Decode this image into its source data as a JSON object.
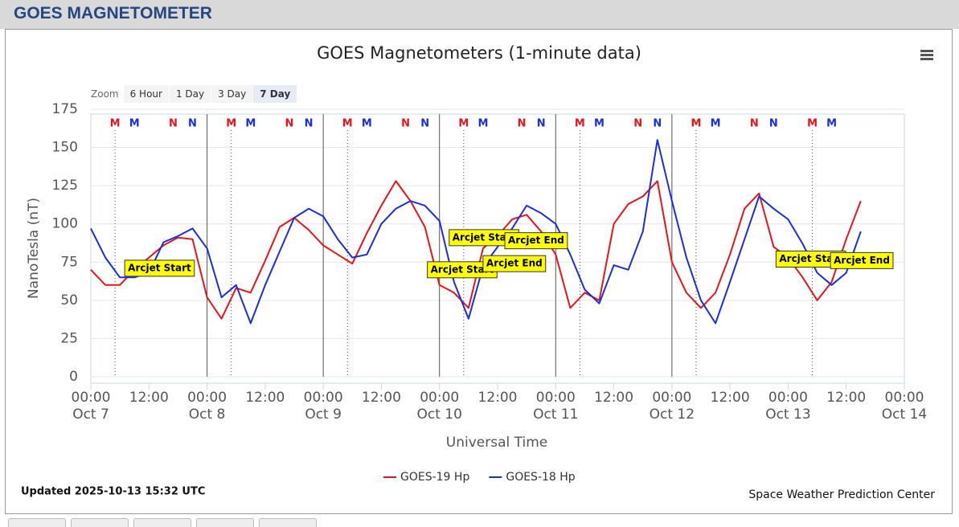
{
  "header": {
    "title": "GOES MAGNETOMETER"
  },
  "ui": {
    "zoom_label": "Zoom",
    "zoom_buttons": [
      "6 Hour",
      "1 Day",
      "3 Day",
      "7 Day"
    ],
    "selected_zoom": 3
  },
  "chart_data": {
    "type": "line",
    "title": "GOES Magnetometers (1-minute data)",
    "x_label": "Universal Time",
    "y_label": "NanoTesla (nT)",
    "updated": "Updated 2025-10-13 15:32 UTC",
    "credits": "Space Weather Prediction Center",
    "xlim": [
      "Oct 7 00:00",
      "Oct 14 00:00"
    ],
    "xticks": [
      {
        "value": "Oct 7 00:00",
        "label": "00:00",
        "date": "Oct 7"
      },
      {
        "value": "Oct 7 12:00",
        "label": "12:00"
      },
      {
        "value": "Oct 8 00:00",
        "label": "00:00",
        "date": "Oct 8"
      },
      {
        "value": "Oct 8 12:00",
        "label": "12:00"
      },
      {
        "value": "Oct 9 00:00",
        "label": "00:00",
        "date": "Oct 9"
      },
      {
        "value": "Oct 9 12:00",
        "label": "12:00"
      },
      {
        "value": "Oct 10 00:00",
        "label": "00:00",
        "date": "Oct 10"
      },
      {
        "value": "Oct 10 12:00",
        "label": "12:00"
      },
      {
        "value": "Oct 11 00:00",
        "label": "00:00",
        "date": "Oct 11"
      },
      {
        "value": "Oct 11 12:00",
        "label": "12:00"
      },
      {
        "value": "Oct 12 00:00",
        "label": "00:00",
        "date": "Oct 12"
      },
      {
        "value": "Oct 12 12:00",
        "label": "12:00"
      },
      {
        "value": "Oct 13 00:00",
        "label": "00:00",
        "date": "Oct 13"
      },
      {
        "value": "Oct 13 12:00",
        "label": "12:00"
      },
      {
        "value": "Oct 14 00:00",
        "label": "00:00",
        "date": "Oct 14"
      }
    ],
    "ylim": [
      0,
      175
    ],
    "yticks": [
      0,
      25,
      50,
      75,
      100,
      125,
      150,
      175
    ],
    "grid": true,
    "midnight_lines": [
      "Oct 8 00:00",
      "Oct 9 00:00",
      "Oct 10 00:00",
      "Oct 11 00:00",
      "Oct 12 00:00"
    ],
    "markers": [
      {
        "text": "M",
        "color": "#e8141b",
        "dotted": true,
        "x": [
          "Oct 7 05:00",
          "Oct 8 05:00",
          "Oct 9 05:00",
          "Oct 10 05:00",
          "Oct 11 05:00",
          "Oct 12 05:00",
          "Oct 13 05:00"
        ]
      },
      {
        "text": "M",
        "color": "#1a2de0",
        "dotted": false,
        "x": [
          "Oct 7 09:00",
          "Oct 8 09:00",
          "Oct 9 09:00",
          "Oct 10 09:00",
          "Oct 11 09:00",
          "Oct 12 09:00",
          "Oct 13 09:00"
        ]
      },
      {
        "text": "N",
        "color": "#e8141b",
        "dotted": false,
        "x": [
          "Oct 7 17:00",
          "Oct 8 17:00",
          "Oct 9 17:00",
          "Oct 10 17:00",
          "Oct 11 17:00",
          "Oct 12 17:00"
        ]
      },
      {
        "text": "N",
        "color": "#1a2de0",
        "dotted": false,
        "x": [
          "Oct 7 21:00",
          "Oct 8 21:00",
          "Oct 9 21:00",
          "Oct 10 21:00",
          "Oct 11 21:00",
          "Oct 12 21:00"
        ]
      }
    ],
    "annotations": [
      {
        "text": "Arcjet Start",
        "x": "Oct 7 07:00",
        "y": 71
      },
      {
        "text": "Arcjet Start",
        "x": "Oct 10 02:00",
        "y": 91
      },
      {
        "text": "Arcjet End",
        "x": "Oct 10 13:30",
        "y": 89
      },
      {
        "text": "Arcjet Start",
        "x": "Oct 9 21:30",
        "y": 70
      },
      {
        "text": "Arcjet End",
        "x": "Oct 10 09:00",
        "y": 74
      },
      {
        "text": "Arcjet Start",
        "x": "Oct 12 21:30",
        "y": 77
      },
      {
        "text": "Arcjet End",
        "x": "Oct 13 08:45",
        "y": 76
      }
    ],
    "x": [
      "Oct 7 00:00",
      "Oct 7 03:00",
      "Oct 7 06:00",
      "Oct 7 09:00",
      "Oct 7 12:00",
      "Oct 7 15:00",
      "Oct 7 18:00",
      "Oct 7 21:00",
      "Oct 8 00:00",
      "Oct 8 03:00",
      "Oct 8 06:00",
      "Oct 8 09:00",
      "Oct 8 12:00",
      "Oct 8 15:00",
      "Oct 8 18:00",
      "Oct 8 21:00",
      "Oct 9 00:00",
      "Oct 9 03:00",
      "Oct 9 06:00",
      "Oct 9 09:00",
      "Oct 9 12:00",
      "Oct 9 15:00",
      "Oct 9 18:00",
      "Oct 9 21:00",
      "Oct 10 00:00",
      "Oct 10 03:00",
      "Oct 10 06:00",
      "Oct 10 09:00",
      "Oct 10 12:00",
      "Oct 10 15:00",
      "Oct 10 18:00",
      "Oct 10 21:00",
      "Oct 11 00:00",
      "Oct 11 03:00",
      "Oct 11 06:00",
      "Oct 11 09:00",
      "Oct 11 12:00",
      "Oct 11 15:00",
      "Oct 11 18:00",
      "Oct 11 21:00",
      "Oct 12 00:00",
      "Oct 12 03:00",
      "Oct 12 06:00",
      "Oct 12 09:00",
      "Oct 12 12:00",
      "Oct 12 15:00",
      "Oct 12 18:00",
      "Oct 12 21:00",
      "Oct 13 00:00",
      "Oct 13 03:00",
      "Oct 13 06:00",
      "Oct 13 09:00",
      "Oct 13 12:00",
      "Oct 13 15:00"
    ],
    "series": [
      {
        "name": "GOES-19 Hp",
        "color": "#e8141b",
        "values": [
          70,
          60,
          60,
          70,
          78,
          86,
          91,
          90,
          52,
          38,
          58,
          55,
          76,
          98,
          104,
          96,
          86,
          80,
          74,
          94,
          112,
          128,
          115,
          98,
          60,
          55,
          45,
          84,
          92,
          103,
          106,
          95,
          80,
          45,
          55,
          50,
          100,
          113,
          118,
          128,
          75,
          55,
          45,
          55,
          80,
          110,
          120,
          85,
          78,
          65,
          50,
          62,
          90,
          115
        ]
      },
      {
        "name": "GOES-18 Hp",
        "color": "#1a2de0",
        "values": [
          97,
          78,
          65,
          65,
          68,
          88,
          92,
          97,
          84,
          52,
          60,
          35,
          60,
          82,
          104,
          110,
          105,
          90,
          78,
          80,
          100,
          110,
          115,
          112,
          102,
          62,
          38,
          72,
          85,
          97,
          112,
          107,
          100,
          80,
          57,
          48,
          73,
          70,
          95,
          155,
          115,
          78,
          50,
          35,
          62,
          90,
          118,
          110,
          103,
          87,
          68,
          60,
          68,
          95
        ]
      }
    ]
  }
}
